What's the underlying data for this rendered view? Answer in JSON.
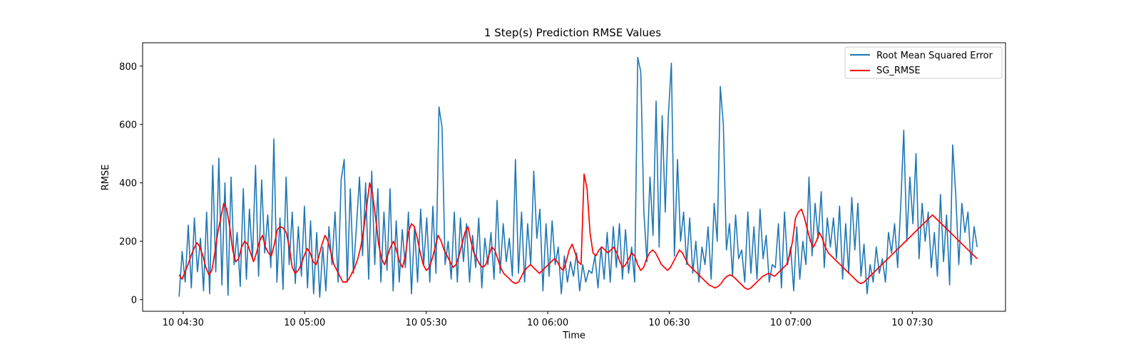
{
  "chart_data": {
    "type": "line",
    "title": "1 Step(s) Prediction RMSE Values",
    "xlabel": "Time",
    "ylabel": "RMSE",
    "x_tick_labels": [
      "10 04:30",
      "10 05:00",
      "10 05:30",
      "10 06:00",
      "10 06:30",
      "10 07:00",
      "10 07:30"
    ],
    "y_tick_labels": [
      "0",
      "200",
      "400",
      "600",
      "800"
    ],
    "xlim": [
      "04:20",
      "07:53"
    ],
    "ylim": [
      -40,
      880
    ],
    "legend_position": "top-right",
    "grid": false,
    "series": [
      {
        "name": "Root Mean Squared Error",
        "color": "#1f77b4",
        "x_start": "04:29",
        "x_end": "07:46",
        "values": [
          10,
          165,
          60,
          255,
          40,
          280,
          95,
          210,
          30,
          300,
          20,
          460,
          95,
          485,
          50,
          400,
          15,
          420,
          120,
          230,
          45,
          380,
          70,
          310,
          140,
          460,
          80,
          410,
          160,
          290,
          110,
          550,
          60,
          280,
          35,
          420,
          120,
          300,
          55,
          250,
          80,
          320,
          40,
          270,
          20,
          230,
          8,
          180,
          30,
          250,
          120,
          300,
          60,
          410,
          480,
          60,
          380,
          90,
          250,
          420,
          150,
          400,
          70,
          440,
          120,
          380,
          60,
          300,
          100,
          380,
          30,
          270,
          60,
          240,
          110,
          300,
          20,
          250,
          60,
          310,
          120,
          280,
          60,
          320,
          90,
          660,
          590,
          120,
          200,
          70,
          300,
          60,
          280,
          130,
          260,
          60,
          220,
          110,
          280,
          40,
          210,
          120,
          230,
          70,
          340,
          90,
          260,
          130,
          210,
          80,
          480,
          90,
          300,
          60,
          260,
          120,
          440,
          210,
          310,
          30,
          260,
          80,
          270,
          120,
          180,
          20,
          150,
          60,
          130,
          80,
          160,
          30,
          120,
          60,
          100,
          90,
          150,
          40,
          180,
          70,
          230,
          60,
          250,
          110,
          260,
          70,
          240,
          90,
          180,
          60,
          830,
          780,
          300,
          130,
          420,
          220,
          680,
          180,
          630,
          300,
          630,
          810,
          150,
          480,
          200,
          300,
          120,
          280,
          90,
          200,
          60,
          180,
          120,
          250,
          70,
          330,
          200,
          730,
          600,
          170,
          260,
          80,
          290,
          140,
          170,
          60,
          300,
          90,
          250,
          70,
          310,
          140,
          220,
          60,
          120,
          110,
          260,
          40,
          300,
          120,
          180,
          30,
          250,
          70,
          200,
          120,
          420,
          150,
          330,
          210,
          370,
          110,
          280,
          180,
          280,
          140,
          320,
          70,
          260,
          90,
          350,
          170,
          330,
          80,
          190,
          20,
          120,
          60,
          180,
          90,
          140,
          60,
          230,
          160,
          260,
          110,
          320,
          580,
          200,
          420,
          260,
          500,
          140,
          330,
          200,
          300,
          110,
          230,
          80,
          360,
          130,
          290,
          50,
          530,
          360,
          120,
          330,
          230,
          300,
          120,
          250,
          180
        ]
      },
      {
        "name": "SG_RMSE",
        "color": "#ff0000",
        "x_start": "04:29",
        "x_end": "07:46",
        "values": [
          85,
          70,
          95,
          120,
          150,
          175,
          195,
          180,
          150,
          110,
          85,
          100,
          160,
          230,
          280,
          330,
          310,
          250,
          170,
          130,
          140,
          180,
          200,
          190,
          160,
          130,
          160,
          200,
          220,
          180,
          160,
          150,
          190,
          240,
          250,
          245,
          230,
          180,
          110,
          90,
          100,
          120,
          150,
          175,
          160,
          130,
          120,
          150,
          190,
          220,
          200,
          160,
          120,
          100,
          80,
          60,
          60,
          70,
          90,
          110,
          140,
          180,
          240,
          320,
          400,
          360,
          280,
          190,
          140,
          120,
          150,
          180,
          200,
          170,
          130,
          110,
          150,
          230,
          260,
          250,
          210,
          160,
          120,
          100,
          110,
          140,
          180,
          220,
          200,
          170,
          150,
          130,
          110,
          120,
          150,
          190,
          230,
          250,
          200,
          160,
          140,
          120,
          110,
          120,
          150,
          180,
          170,
          140,
          110,
          90,
          80,
          70,
          60,
          55,
          60,
          80,
          100,
          110,
          120,
          110,
          100,
          90,
          100,
          110,
          120,
          130,
          140,
          130,
          110,
          100,
          130,
          170,
          190,
          160,
          130,
          120,
          430,
          380,
          230,
          160,
          150,
          170,
          180,
          170,
          160,
          170,
          180,
          160,
          130,
          110,
          120,
          140,
          160,
          150,
          120,
          100,
          110,
          140,
          160,
          170,
          160,
          140,
          120,
          110,
          100,
          110,
          130,
          150,
          170,
          160,
          140,
          120,
          110,
          100,
          90,
          80,
          70,
          60,
          50,
          45,
          40,
          45,
          55,
          70,
          80,
          85,
          80,
          70,
          60,
          50,
          40,
          35,
          40,
          50,
          60,
          70,
          80,
          85,
          90,
          85,
          80,
          90,
          100,
          110,
          120,
          150,
          200,
          280,
          300,
          310,
          280,
          240,
          200,
          180,
          200,
          230,
          210,
          180,
          160,
          150,
          140,
          130,
          120,
          110,
          100,
          90,
          80,
          70,
          60,
          55,
          60,
          70,
          80,
          90,
          100,
          110,
          120,
          130,
          140,
          150,
          160,
          170,
          180,
          190,
          200,
          210,
          220,
          230,
          240,
          250,
          260,
          270,
          280,
          290,
          280,
          270,
          260,
          250,
          240,
          230,
          220,
          210,
          200,
          190,
          180,
          170,
          160,
          150,
          140
        ]
      }
    ]
  }
}
